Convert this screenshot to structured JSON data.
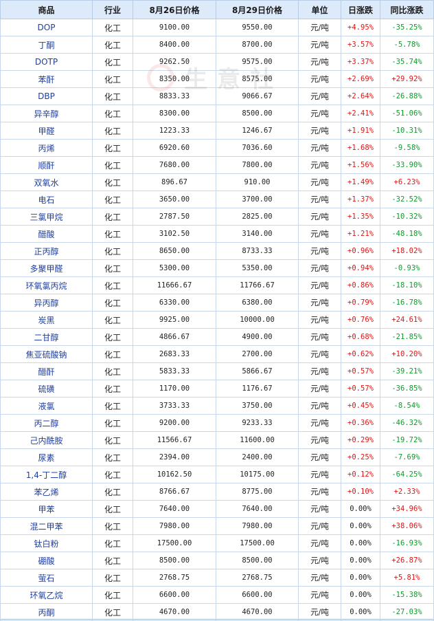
{
  "header": {
    "columns": [
      "商品",
      "行业",
      "8月26日价格",
      "8月29日价格",
      "单位",
      "日涨跌",
      "同比涨跌"
    ]
  },
  "watermark": {
    "text": "生意社"
  },
  "colors": {
    "up": "#e01414",
    "down": "#0d9a2a",
    "name": "#1f3f9e",
    "header_bg": "#ddeafa"
  },
  "rows": [
    {
      "name": "DOP",
      "industry": "化工",
      "p1": "9100.00",
      "p2": "9550.00",
      "unit": "元/吨",
      "day": "+4.95%",
      "yoy": "-35.25%"
    },
    {
      "name": "丁酮",
      "industry": "化工",
      "p1": "8400.00",
      "p2": "8700.00",
      "unit": "元/吨",
      "day": "+3.57%",
      "yoy": "-5.78%"
    },
    {
      "name": "DOTP",
      "industry": "化工",
      "p1": "9262.50",
      "p2": "9575.00",
      "unit": "元/吨",
      "day": "+3.37%",
      "yoy": "-35.74%"
    },
    {
      "name": "苯酐",
      "industry": "化工",
      "p1": "8350.00",
      "p2": "8575.00",
      "unit": "元/吨",
      "day": "+2.69%",
      "yoy": "+29.92%"
    },
    {
      "name": "DBP",
      "industry": "化工",
      "p1": "8833.33",
      "p2": "9066.67",
      "unit": "元/吨",
      "day": "+2.64%",
      "yoy": "-26.88%"
    },
    {
      "name": "异辛醇",
      "industry": "化工",
      "p1": "8300.00",
      "p2": "8500.00",
      "unit": "元/吨",
      "day": "+2.41%",
      "yoy": "-51.06%"
    },
    {
      "name": "甲醛",
      "industry": "化工",
      "p1": "1223.33",
      "p2": "1246.67",
      "unit": "元/吨",
      "day": "+1.91%",
      "yoy": "-10.31%"
    },
    {
      "name": "丙烯",
      "industry": "化工",
      "p1": "6920.60",
      "p2": "7036.60",
      "unit": "元/吨",
      "day": "+1.68%",
      "yoy": "-9.58%"
    },
    {
      "name": "顺酐",
      "industry": "化工",
      "p1": "7680.00",
      "p2": "7800.00",
      "unit": "元/吨",
      "day": "+1.56%",
      "yoy": "-33.90%"
    },
    {
      "name": "双氧水",
      "industry": "化工",
      "p1": "896.67",
      "p2": "910.00",
      "unit": "元/吨",
      "day": "+1.49%",
      "yoy": "+6.23%"
    },
    {
      "name": "电石",
      "industry": "化工",
      "p1": "3650.00",
      "p2": "3700.00",
      "unit": "元/吨",
      "day": "+1.37%",
      "yoy": "-32.52%"
    },
    {
      "name": "三氯甲烷",
      "industry": "化工",
      "p1": "2787.50",
      "p2": "2825.00",
      "unit": "元/吨",
      "day": "+1.35%",
      "yoy": "-10.32%"
    },
    {
      "name": "醋酸",
      "industry": "化工",
      "p1": "3102.50",
      "p2": "3140.00",
      "unit": "元/吨",
      "day": "+1.21%",
      "yoy": "-48.18%"
    },
    {
      "name": "正丙醇",
      "industry": "化工",
      "p1": "8650.00",
      "p2": "8733.33",
      "unit": "元/吨",
      "day": "+0.96%",
      "yoy": "+18.02%"
    },
    {
      "name": "多聚甲醛",
      "industry": "化工",
      "p1": "5300.00",
      "p2": "5350.00",
      "unit": "元/吨",
      "day": "+0.94%",
      "yoy": "-0.93%"
    },
    {
      "name": "环氧氯丙烷",
      "industry": "化工",
      "p1": "11666.67",
      "p2": "11766.67",
      "unit": "元/吨",
      "day": "+0.86%",
      "yoy": "-18.10%"
    },
    {
      "name": "异丙醇",
      "industry": "化工",
      "p1": "6330.00",
      "p2": "6380.00",
      "unit": "元/吨",
      "day": "+0.79%",
      "yoy": "-16.78%"
    },
    {
      "name": "炭黑",
      "industry": "化工",
      "p1": "9925.00",
      "p2": "10000.00",
      "unit": "元/吨",
      "day": "+0.76%",
      "yoy": "+24.61%"
    },
    {
      "name": "二甘醇",
      "industry": "化工",
      "p1": "4866.67",
      "p2": "4900.00",
      "unit": "元/吨",
      "day": "+0.68%",
      "yoy": "-21.85%"
    },
    {
      "name": "焦亚硫酸钠",
      "industry": "化工",
      "p1": "2683.33",
      "p2": "2700.00",
      "unit": "元/吨",
      "day": "+0.62%",
      "yoy": "+10.20%"
    },
    {
      "name": "醋酐",
      "industry": "化工",
      "p1": "5833.33",
      "p2": "5866.67",
      "unit": "元/吨",
      "day": "+0.57%",
      "yoy": "-39.21%"
    },
    {
      "name": "硫磺",
      "industry": "化工",
      "p1": "1170.00",
      "p2": "1176.67",
      "unit": "元/吨",
      "day": "+0.57%",
      "yoy": "-36.85%"
    },
    {
      "name": "液氯",
      "industry": "化工",
      "p1": "3733.33",
      "p2": "3750.00",
      "unit": "元/吨",
      "day": "+0.45%",
      "yoy": "-8.54%"
    },
    {
      "name": "丙二醇",
      "industry": "化工",
      "p1": "9200.00",
      "p2": "9233.33",
      "unit": "元/吨",
      "day": "+0.36%",
      "yoy": "-46.32%"
    },
    {
      "name": "己内酰胺",
      "industry": "化工",
      "p1": "11566.67",
      "p2": "11600.00",
      "unit": "元/吨",
      "day": "+0.29%",
      "yoy": "-19.72%"
    },
    {
      "name": "尿素",
      "industry": "化工",
      "p1": "2394.00",
      "p2": "2400.00",
      "unit": "元/吨",
      "day": "+0.25%",
      "yoy": "-7.69%"
    },
    {
      "name": "1,4-丁二醇",
      "industry": "化工",
      "p1": "10162.50",
      "p2": "10175.00",
      "unit": "元/吨",
      "day": "+0.12%",
      "yoy": "-64.25%"
    },
    {
      "name": "苯乙烯",
      "industry": "化工",
      "p1": "8766.67",
      "p2": "8775.00",
      "unit": "元/吨",
      "day": "+0.10%",
      "yoy": "+2.33%"
    },
    {
      "name": "甲苯",
      "industry": "化工",
      "p1": "7640.00",
      "p2": "7640.00",
      "unit": "元/吨",
      "day": "0.00%",
      "yoy": "+34.96%"
    },
    {
      "name": "混二甲苯",
      "industry": "化工",
      "p1": "7980.00",
      "p2": "7980.00",
      "unit": "元/吨",
      "day": "0.00%",
      "yoy": "+38.06%"
    },
    {
      "name": "钛白粉",
      "industry": "化工",
      "p1": "17500.00",
      "p2": "17500.00",
      "unit": "元/吨",
      "day": "0.00%",
      "yoy": "-16.93%"
    },
    {
      "name": "硼酸",
      "industry": "化工",
      "p1": "8500.00",
      "p2": "8500.00",
      "unit": "元/吨",
      "day": "0.00%",
      "yoy": "+26.87%"
    },
    {
      "name": "萤石",
      "industry": "化工",
      "p1": "2768.75",
      "p2": "2768.75",
      "unit": "元/吨",
      "day": "0.00%",
      "yoy": "+5.81%"
    },
    {
      "name": "环氧乙烷",
      "industry": "化工",
      "p1": "6600.00",
      "p2": "6600.00",
      "unit": "元/吨",
      "day": "0.00%",
      "yoy": "-15.38%"
    },
    {
      "name": "丙酮",
      "industry": "化工",
      "p1": "4670.00",
      "p2": "4670.00",
      "unit": "元/吨",
      "day": "0.00%",
      "yoy": "-27.03%"
    }
  ]
}
